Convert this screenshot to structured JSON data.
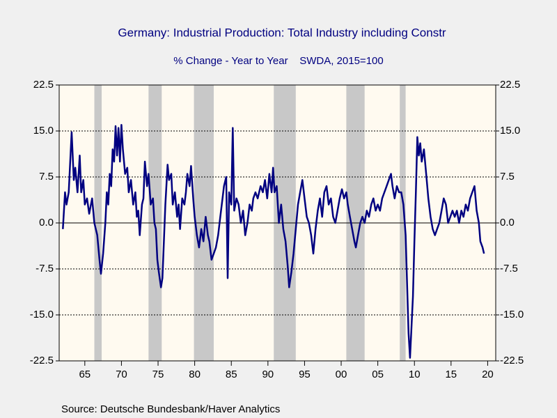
{
  "chart_data": {
    "type": "line",
    "title": "Germany: Industrial Production: Total Industry including Constr",
    "subtitle": "% Change - Year to Year    SWDA, 2015=100",
    "source": "Source:  Deutsche Bundesbank/Haver Analytics",
    "xlim": [
      1961.5,
      2021.1
    ],
    "xticks": [
      {
        "value": 1965,
        "label": "65"
      },
      {
        "value": 1970,
        "label": "70"
      },
      {
        "value": 1975,
        "label": "75"
      },
      {
        "value": 1980,
        "label": "80"
      },
      {
        "value": 1985,
        "label": "85"
      },
      {
        "value": 1990,
        "label": "90"
      },
      {
        "value": 1995,
        "label": "95"
      },
      {
        "value": 2000,
        "label": "00"
      },
      {
        "value": 2005,
        "label": "05"
      },
      {
        "value": 2010,
        "label": "10"
      },
      {
        "value": 2015,
        "label": "15"
      },
      {
        "value": 2020,
        "label": "20"
      }
    ],
    "ylim": [
      -22.5,
      22.5
    ],
    "yticks": [
      22.5,
      {
        "value": 15,
        "label": "15.0"
      },
      7.5,
      {
        "value": 0,
        "label": "0.0"
      },
      -7.5,
      {
        "value": -15,
        "label": "-15.0"
      },
      -22.5
    ],
    "grid": true,
    "shaded_periods": [
      [
        1966.3,
        1967.3
      ],
      [
        1973.7,
        1975.5
      ],
      [
        1979.9,
        1982.6
      ],
      [
        1990.8,
        1993.8
      ],
      [
        2000.7,
        2003.2
      ],
      [
        2008.0,
        2008.8
      ]
    ],
    "shade_color": "#c8c8c8",
    "x": [
      1962.0,
      1962.3,
      1962.5,
      1962.8,
      1963.2,
      1963.5,
      1963.7,
      1964.0,
      1964.3,
      1964.5,
      1964.8,
      1965.0,
      1965.3,
      1965.6,
      1966.0,
      1966.3,
      1966.7,
      1967.0,
      1967.2,
      1967.5,
      1967.8,
      1968.0,
      1968.2,
      1968.4,
      1968.6,
      1968.8,
      1969.0,
      1969.2,
      1969.4,
      1969.6,
      1969.8,
      1970.0,
      1970.2,
      1970.5,
      1970.8,
      1971.0,
      1971.3,
      1971.6,
      1971.9,
      1972.1,
      1972.3,
      1972.5,
      1972.8,
      1973.0,
      1973.2,
      1973.5,
      1973.7,
      1974.0,
      1974.3,
      1974.5,
      1974.7,
      1974.9,
      1975.1,
      1975.4,
      1975.6,
      1975.8,
      1976.0,
      1976.3,
      1976.5,
      1976.8,
      1977.0,
      1977.3,
      1977.6,
      1977.8,
      1978.0,
      1978.3,
      1978.6,
      1978.8,
      1979.0,
      1979.3,
      1979.5,
      1979.8,
      1980.0,
      1980.3,
      1980.6,
      1980.9,
      1981.2,
      1981.5,
      1981.8,
      1982.0,
      1982.3,
      1982.6,
      1982.9,
      1983.2,
      1983.5,
      1983.8,
      1984.0,
      1984.3,
      1984.5,
      1984.7,
      1985.0,
      1985.2,
      1985.4,
      1985.7,
      1986.0,
      1986.3,
      1986.6,
      1986.9,
      1987.2,
      1987.5,
      1987.8,
      1988.0,
      1988.3,
      1988.6,
      1989.0,
      1989.3,
      1989.6,
      1989.9,
      1990.2,
      1990.5,
      1990.7,
      1990.9,
      1991.2,
      1991.5,
      1991.8,
      1992.1,
      1992.4,
      1992.7,
      1992.9,
      1993.2,
      1993.5,
      1993.8,
      1994.1,
      1994.4,
      1994.7,
      1995.0,
      1995.3,
      1995.6,
      1995.9,
      1996.2,
      1996.5,
      1996.8,
      1997.1,
      1997.4,
      1997.7,
      1998.0,
      1998.3,
      1998.6,
      1998.9,
      1999.2,
      1999.5,
      1999.8,
      2000.1,
      2000.4,
      2000.7,
      2000.9,
      2001.2,
      2001.5,
      2001.8,
      2002.0,
      2002.3,
      2002.6,
      2002.9,
      2003.2,
      2003.5,
      2003.8,
      2004.1,
      2004.4,
      2004.7,
      2005.0,
      2005.3,
      2005.6,
      2005.9,
      2006.2,
      2006.5,
      2006.8,
      2007.0,
      2007.3,
      2007.6,
      2007.9,
      2008.2,
      2008.5,
      2008.8,
      2009.0,
      2009.2,
      2009.4,
      2009.6,
      2009.8,
      2010.0,
      2010.2,
      2010.4,
      2010.6,
      2010.8,
      2011.0,
      2011.3,
      2011.6,
      2011.9,
      2012.2,
      2012.5,
      2012.8,
      2013.1,
      2013.4,
      2013.7,
      2014.0,
      2014.3,
      2014.6,
      2014.9,
      2015.2,
      2015.5,
      2015.8,
      2016.1,
      2016.4,
      2016.7,
      2017.0,
      2017.3,
      2017.6,
      2017.9,
      2018.2,
      2018.5,
      2018.8,
      2019.0,
      2019.3,
      2019.5
    ],
    "series": [
      {
        "name": "Industrial Production",
        "color": "#000080",
        "values": [
          -1,
          5,
          3,
          5,
          14.8,
          7,
          9,
          5,
          11,
          5,
          7,
          3,
          4,
          1.5,
          4,
          0,
          -2,
          -6,
          -8.3,
          -5,
          0,
          5,
          3,
          8,
          6,
          12,
          10,
          15.8,
          11,
          15.5,
          10,
          16,
          12,
          8,
          9,
          5,
          7,
          3,
          5,
          1,
          2,
          -2,
          3,
          4,
          10,
          6,
          8,
          3,
          4,
          0,
          -1,
          -6,
          -8,
          -10.5,
          -9,
          -3,
          3,
          9.5,
          7,
          8,
          3,
          5,
          1,
          3,
          -1,
          4,
          3,
          5,
          8,
          6,
          9.3,
          4,
          1,
          -2,
          -4,
          -1,
          -3,
          1,
          -2,
          -3,
          -6,
          -5,
          -4,
          -2,
          1,
          4,
          6,
          7.5,
          -9,
          5,
          3,
          15.5,
          2,
          4,
          3,
          0,
          2,
          -2,
          0,
          3,
          2,
          4,
          5,
          4,
          6,
          5,
          7,
          4,
          8,
          5,
          9,
          5,
          6,
          0,
          3,
          -1,
          -3,
          -7,
          -10.5,
          -8,
          -5,
          -1,
          3,
          5,
          7,
          4,
          1,
          0,
          -2,
          -5,
          -1,
          2,
          4,
          1,
          5,
          6,
          3,
          4,
          1,
          0,
          2,
          4,
          5.5,
          4,
          5,
          3,
          1,
          -1,
          -3,
          -4,
          -2,
          0,
          1,
          0,
          2,
          1,
          3,
          4,
          2,
          3,
          2,
          4,
          5,
          6,
          7,
          8,
          6,
          4,
          6,
          5,
          5,
          3,
          -2,
          -10,
          -18,
          -22,
          -17,
          -12,
          -3,
          5,
          14,
          11,
          13,
          10,
          12,
          8,
          4,
          1,
          -1,
          -2,
          -1,
          0,
          2,
          4,
          3,
          0,
          1,
          2,
          1,
          2,
          0,
          2,
          1,
          3,
          2,
          4,
          5,
          6,
          2,
          0,
          -3,
          -4,
          -5
        ]
      }
    ]
  }
}
